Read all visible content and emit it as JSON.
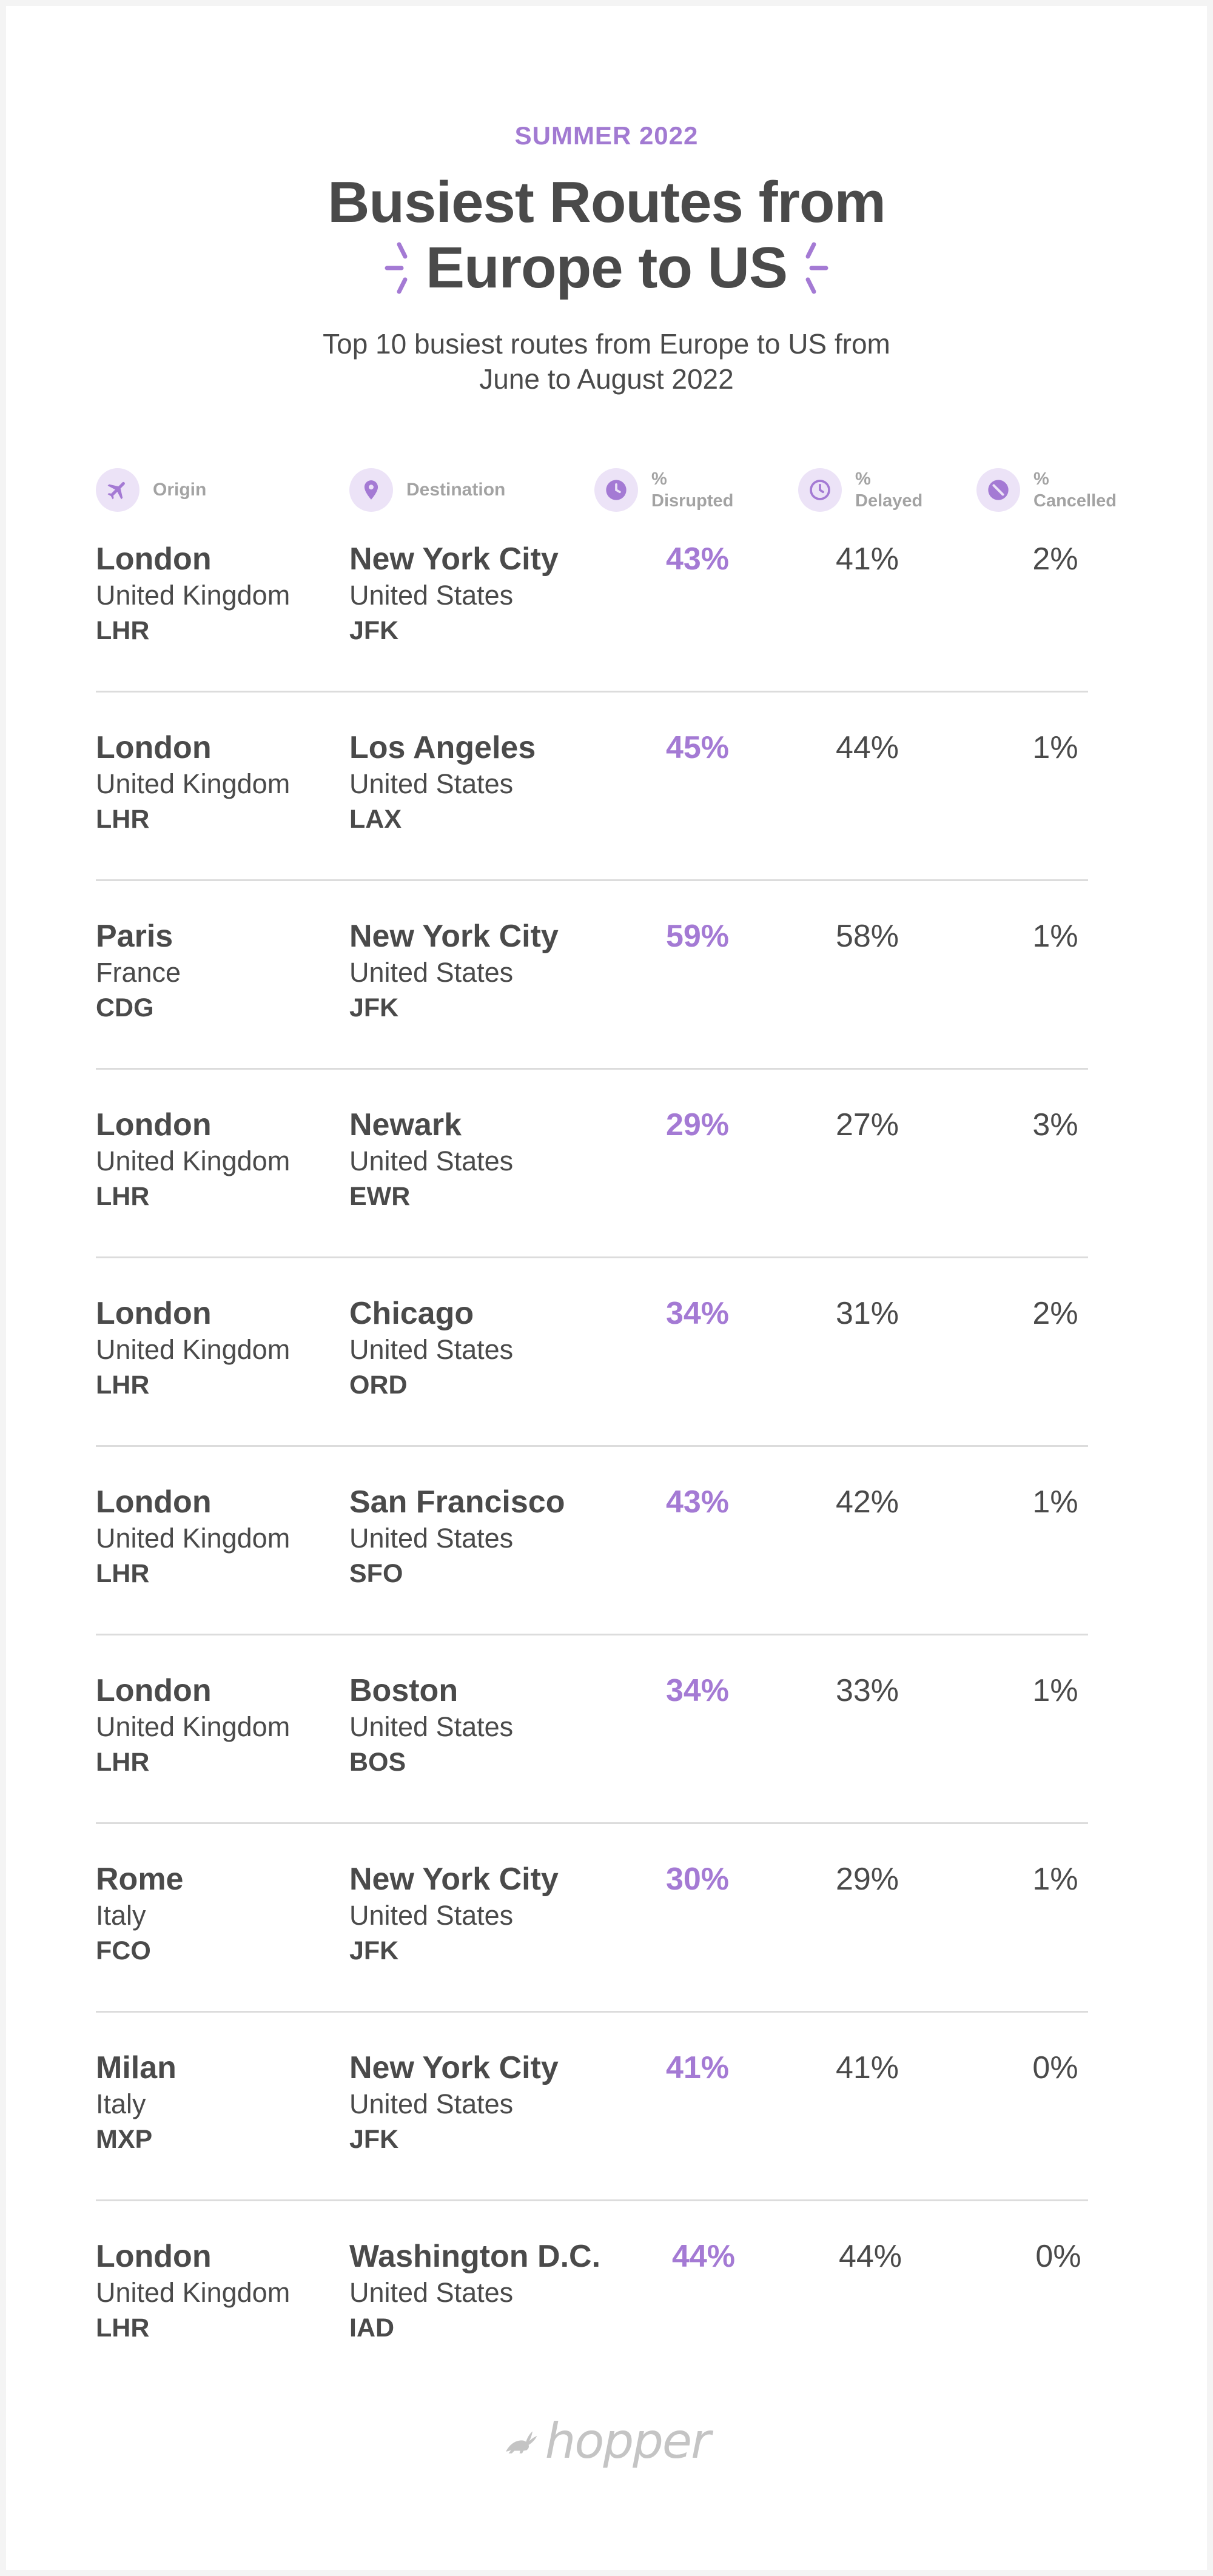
{
  "header": {
    "kicker": "SUMMER 2022",
    "title_line1": "Busiest Routes from",
    "title_line2": "Europe to US",
    "subtitle": "Top 10 busiest routes from Europe to US from June to August 2022"
  },
  "columns": {
    "origin": {
      "label": "Origin",
      "icon": "plane-icon"
    },
    "destination": {
      "label": "Destination",
      "icon": "location-pin-icon"
    },
    "disrupted": {
      "label_top": "%",
      "label_bottom": "Disrupted",
      "icon": "clock-filled-icon"
    },
    "delayed": {
      "label_top": "%",
      "label_bottom": "Delayed",
      "icon": "clock-outline-icon"
    },
    "cancelled": {
      "label_top": "%",
      "label_bottom": "Cancelled",
      "icon": "cancel-icon"
    }
  },
  "routes": [
    {
      "origin_city": "London",
      "origin_country": "United Kingdom",
      "origin_code": "LHR",
      "dest_city": "New York City",
      "dest_country": "United States",
      "dest_code": "JFK",
      "disrupted": "43%",
      "delayed": "41%",
      "cancelled": "2%"
    },
    {
      "origin_city": "London",
      "origin_country": "United Kingdom",
      "origin_code": "LHR",
      "dest_city": "Los Angeles",
      "dest_country": "United States",
      "dest_code": "LAX",
      "disrupted": "45%",
      "delayed": "44%",
      "cancelled": "1%"
    },
    {
      "origin_city": "Paris",
      "origin_country": "France",
      "origin_code": "CDG",
      "dest_city": "New York City",
      "dest_country": "United States",
      "dest_code": "JFK",
      "disrupted": "59%",
      "delayed": "58%",
      "cancelled": "1%"
    },
    {
      "origin_city": "London",
      "origin_country": "United Kingdom",
      "origin_code": "LHR",
      "dest_city": "Newark",
      "dest_country": "United States",
      "dest_code": "EWR",
      "disrupted": "29%",
      "delayed": "27%",
      "cancelled": "3%"
    },
    {
      "origin_city": "London",
      "origin_country": "United Kingdom",
      "origin_code": "LHR",
      "dest_city": "Chicago",
      "dest_country": "United States",
      "dest_code": "ORD",
      "disrupted": "34%",
      "delayed": "31%",
      "cancelled": "2%"
    },
    {
      "origin_city": "London",
      "origin_country": "United Kingdom",
      "origin_code": "LHR",
      "dest_city": "San Francisco",
      "dest_country": "United States",
      "dest_code": "SFO",
      "disrupted": "43%",
      "delayed": "42%",
      "cancelled": "1%"
    },
    {
      "origin_city": "London",
      "origin_country": "United Kingdom",
      "origin_code": "LHR",
      "dest_city": "Boston",
      "dest_country": "United States",
      "dest_code": "BOS",
      "disrupted": "34%",
      "delayed": "33%",
      "cancelled": "1%"
    },
    {
      "origin_city": "Rome",
      "origin_country": "Italy",
      "origin_code": "FCO",
      "dest_city": "New York City",
      "dest_country": "United States",
      "dest_code": "JFK",
      "disrupted": "30%",
      "delayed": "29%",
      "cancelled": "1%"
    },
    {
      "origin_city": "Milan",
      "origin_country": "Italy",
      "origin_code": "MXP",
      "dest_city": "New York City",
      "dest_country": "United States",
      "dest_code": "JFK",
      "disrupted": "41%",
      "delayed": "41%",
      "cancelled": "0%"
    },
    {
      "origin_city": "London",
      "origin_country": "United Kingdom",
      "origin_code": "LHR",
      "dest_city": "Washington D.C.",
      "dest_country": "United States",
      "dest_code": "IAD",
      "disrupted": "44%",
      "delayed": "44%",
      "cancelled": "0%"
    }
  ],
  "footer": {
    "logo_text": "hopper",
    "logo_icon": "bunny-icon"
  },
  "colors": {
    "accent": "#a47ad4",
    "text": "#4a4a4a",
    "muted": "#a3a3a3",
    "icon_bg": "#ece3f7",
    "divider": "#dcdcdc"
  }
}
